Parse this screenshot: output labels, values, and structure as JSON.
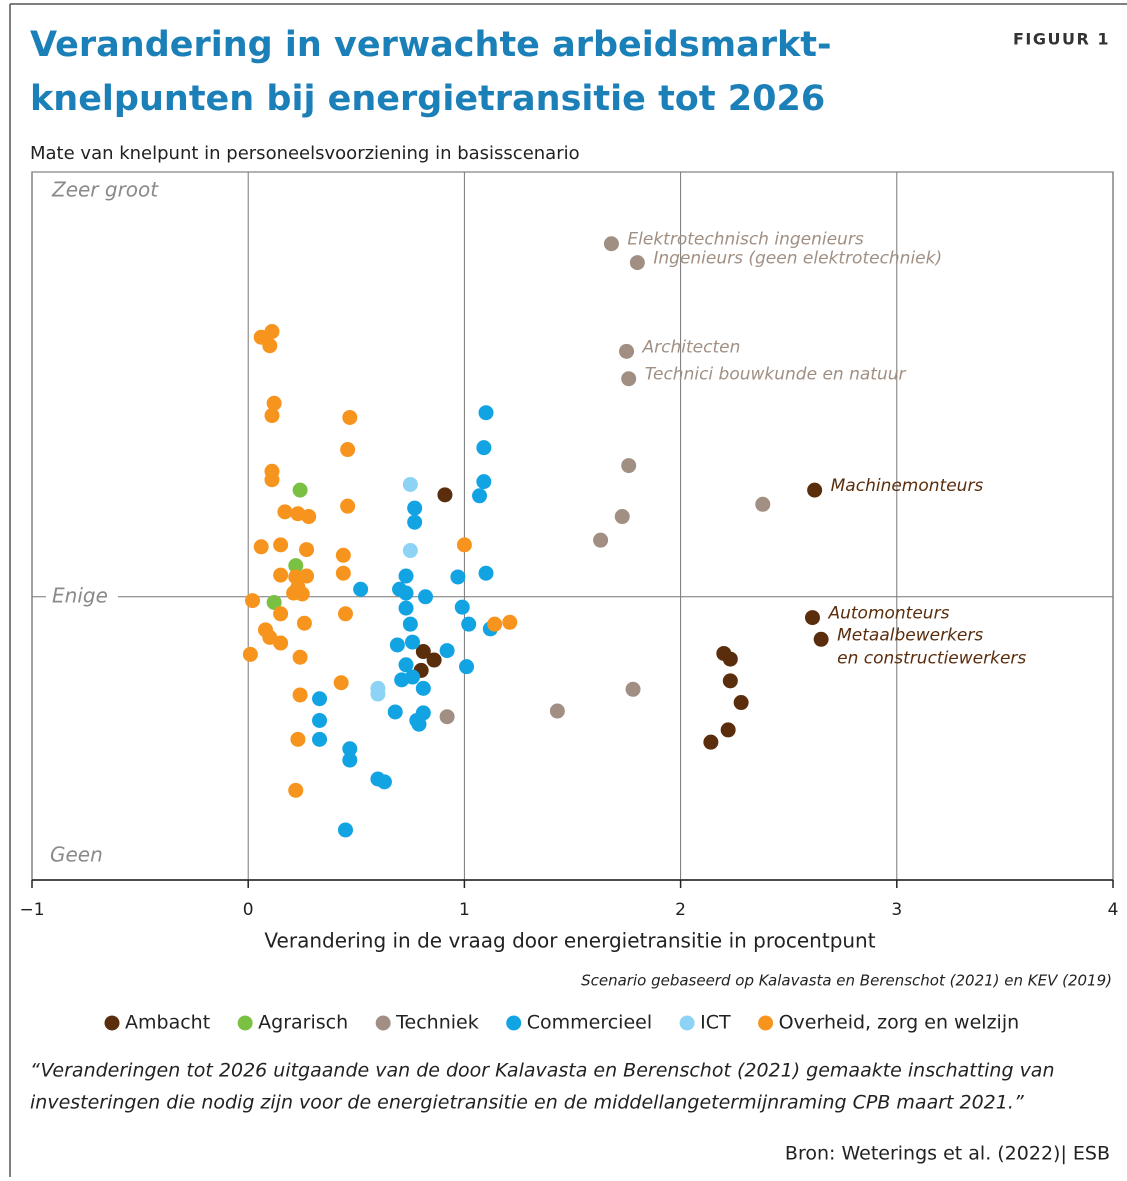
{
  "chart_data": {
    "type": "scatter",
    "title": [
      "Verandering in verwachte arbeidsmarkt-",
      "knelpunten bij energietransitie tot 2026"
    ],
    "figure_label": "FIGUUR 1",
    "subtitle": "Mate van knelpunt in personeelsvoorziening in basisscenario",
    "xlabel": "Verandering in de vraag door energietransitie in procentpunt",
    "source_note": "Scenario gebaseerd op Kalavasta en Berenschot (2021) en KEV (2019)",
    "footnote": [
      "“Veranderingen tot 2026 uitgaande van de door Kalavasta en Berenschot (2021) gemaakte inschatting van",
      "investeringen die nodig zijn voor de energietransitie en de middellangetermijnraming CPB maart 2021.”"
    ],
    "source": "Bron: Weterings et al. (2022)| ESB",
    "xlim": [
      -1,
      4
    ],
    "xticks": [
      {
        "value": -1,
        "label": "−1"
      },
      0,
      1,
      2,
      3,
      4
    ],
    "ylim": [
      -3,
      4.5
    ],
    "yticks": [
      {
        "value": 0,
        "label": "Enige"
      }
    ],
    "ylabel_top": "Zeer groot",
    "ylabel_bottom": "Geen",
    "series": [
      {
        "name": "Ambacht",
        "color": "#5a2d0c",
        "x": [
          0.91,
          2.62,
          2.61,
          2.65,
          0.81,
          0.86,
          0.8,
          2.2,
          2.23,
          2.23,
          2.28,
          2.22,
          2.14
        ],
        "values": [
          1.08,
          1.13,
          -0.22,
          -0.45,
          -0.58,
          -0.67,
          -0.78,
          -0.6,
          -0.66,
          -0.89,
          -1.12,
          -1.41,
          -1.54
        ],
        "point_labels": [
          null,
          [
            "Machinemonteurs"
          ],
          [
            "Automonteurs"
          ],
          [
            "Metaalbewerkers",
            "en constructiewerkers"
          ],
          null,
          null,
          null,
          null,
          null,
          null,
          null,
          null,
          null
        ]
      },
      {
        "name": "Agrarisch",
        "color": "#7ac143",
        "x": [
          0.24,
          0.22,
          0.12
        ],
        "values": [
          1.13,
          0.33,
          -0.06
        ]
      },
      {
        "name": "Techniek",
        "color": "#a08f82",
        "x": [
          1.68,
          1.8,
          1.75,
          1.76,
          1.76,
          2.38,
          1.73,
          1.63,
          1.78,
          1.43,
          0.92
        ],
        "values": [
          3.74,
          3.54,
          2.6,
          2.31,
          1.39,
          0.98,
          0.85,
          0.6,
          -0.98,
          -1.21,
          -1.27
        ],
        "point_labels": [
          [
            "Elektrotechnisch ingenieurs"
          ],
          [
            "Ingenieurs (geen elektrotechniek)"
          ],
          [
            "Architecten"
          ],
          [
            "Technici bouwkunde en natuur"
          ],
          null,
          null,
          null,
          null,
          null,
          null,
          null
        ]
      },
      {
        "name": "Commercieel",
        "color": "#12a3e3",
        "x": [
          1.1,
          1.09,
          1.09,
          1.07,
          0.77,
          0.77,
          1.1,
          0.97,
          0.73,
          0.52,
          0.7,
          0.73,
          0.82,
          0.99,
          0.73,
          1.02,
          1.12,
          0.75,
          0.76,
          0.69,
          0.92,
          0.73,
          1.01,
          0.76,
          0.71,
          0.81,
          0.33,
          0.68,
          0.81,
          0.78,
          0.79,
          0.33,
          0.33,
          0.47,
          0.47,
          0.6,
          0.63,
          0.45
        ],
        "values": [
          1.95,
          1.58,
          1.22,
          1.07,
          0.94,
          0.79,
          0.25,
          0.21,
          0.22,
          0.08,
          0.08,
          0.04,
          0.0,
          -0.11,
          -0.12,
          -0.29,
          -0.34,
          -0.29,
          -0.48,
          -0.51,
          -0.57,
          -0.72,
          -0.74,
          -0.85,
          -0.88,
          -0.97,
          -1.08,
          -1.22,
          -1.23,
          -1.31,
          -1.35,
          -1.31,
          -1.51,
          -1.61,
          -1.73,
          -1.93,
          -1.96,
          -2.47
        ]
      },
      {
        "name": "ICT",
        "color": "#8dd3f5",
        "x": [
          0.75,
          0.75,
          0.6,
          0.6
        ],
        "values": [
          1.19,
          0.49,
          -0.97,
          -1.03
        ]
      },
      {
        "name": "Overheid, zorg en welzijn",
        "color": "#f7941d",
        "x": [
          0.06,
          0.11,
          0.1,
          0.12,
          0.11,
          0.47,
          0.46,
          0.11,
          0.11,
          0.46,
          0.17,
          0.23,
          0.28,
          0.06,
          0.15,
          0.27,
          1.0,
          0.44,
          0.15,
          0.44,
          0.27,
          0.22,
          0.23,
          0.21,
          0.25,
          0.02,
          0.45,
          0.15,
          0.26,
          1.21,
          1.14,
          0.08,
          0.1,
          0.15,
          0.01,
          0.24,
          0.43,
          0.24,
          0.23,
          0.22
        ],
        "values": [
          2.75,
          2.81,
          2.66,
          2.05,
          1.92,
          1.9,
          1.56,
          1.33,
          1.24,
          0.96,
          0.9,
          0.88,
          0.85,
          0.53,
          0.55,
          0.5,
          0.55,
          0.44,
          0.23,
          0.25,
          0.22,
          0.21,
          0.1,
          0.04,
          0.03,
          -0.04,
          -0.18,
          -0.18,
          -0.28,
          -0.27,
          -0.29,
          -0.35,
          -0.43,
          -0.49,
          -0.61,
          -0.64,
          -0.91,
          -1.04,
          -1.51,
          -2.05
        ]
      }
    ]
  }
}
